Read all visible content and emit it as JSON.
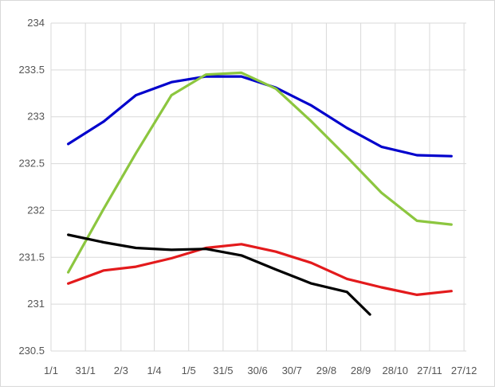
{
  "chart_data": {
    "type": "line",
    "title": "",
    "xlabel": "",
    "ylabel": "",
    "ylim": [
      230.5,
      234
    ],
    "xlim": [
      0,
      362
    ],
    "grid": true,
    "legend": "none",
    "y_ticks": [
      "230.5",
      "231",
      "231.5",
      "232",
      "232.5",
      "233",
      "233.5",
      "234"
    ],
    "x_ticks": [
      {
        "day": 0,
        "label": "1/1"
      },
      {
        "day": 30,
        "label": "31/1"
      },
      {
        "day": 61,
        "label": "2/3"
      },
      {
        "day": 90,
        "label": "1/4"
      },
      {
        "day": 120,
        "label": "1/5"
      },
      {
        "day": 150,
        "label": "31/5"
      },
      {
        "day": 180,
        "label": "30/6"
      },
      {
        "day": 210,
        "label": "30/7"
      },
      {
        "day": 240,
        "label": "29/8"
      },
      {
        "day": 270,
        "label": "28/9"
      },
      {
        "day": 300,
        "label": "28/10"
      },
      {
        "day": 330,
        "label": "27/11"
      },
      {
        "day": 360,
        "label": "27/12"
      }
    ],
    "series": [
      {
        "color": "#0000cc",
        "x": [
          15,
          46,
          74,
          105,
          135,
          166,
          196,
          227,
          258,
          288,
          319,
          349
        ],
        "y": [
          232.71,
          232.95,
          233.23,
          233.37,
          233.43,
          233.43,
          233.31,
          233.12,
          232.88,
          232.68,
          232.59,
          232.58
        ]
      },
      {
        "color": "#8cc63f",
        "x": [
          15,
          46,
          74,
          105,
          135,
          166,
          196,
          227,
          258,
          288,
          319,
          349
        ],
        "y": [
          231.34,
          232.02,
          232.61,
          233.23,
          233.45,
          233.47,
          233.3,
          232.95,
          232.57,
          232.19,
          231.89,
          231.85
        ]
      },
      {
        "color": "#e31a1c",
        "x": [
          15,
          46,
          74,
          105,
          135,
          166,
          196,
          227,
          258,
          288,
          319,
          349
        ],
        "y": [
          231.22,
          231.36,
          231.4,
          231.49,
          231.6,
          231.64,
          231.56,
          231.44,
          231.27,
          231.18,
          231.1,
          231.14
        ]
      },
      {
        "color": "#000000",
        "x": [
          15,
          46,
          74,
          105,
          135,
          166,
          196,
          227,
          258,
          278
        ],
        "y": [
          231.74,
          231.66,
          231.6,
          231.58,
          231.59,
          231.52,
          231.37,
          231.22,
          231.13,
          230.89
        ]
      }
    ]
  }
}
